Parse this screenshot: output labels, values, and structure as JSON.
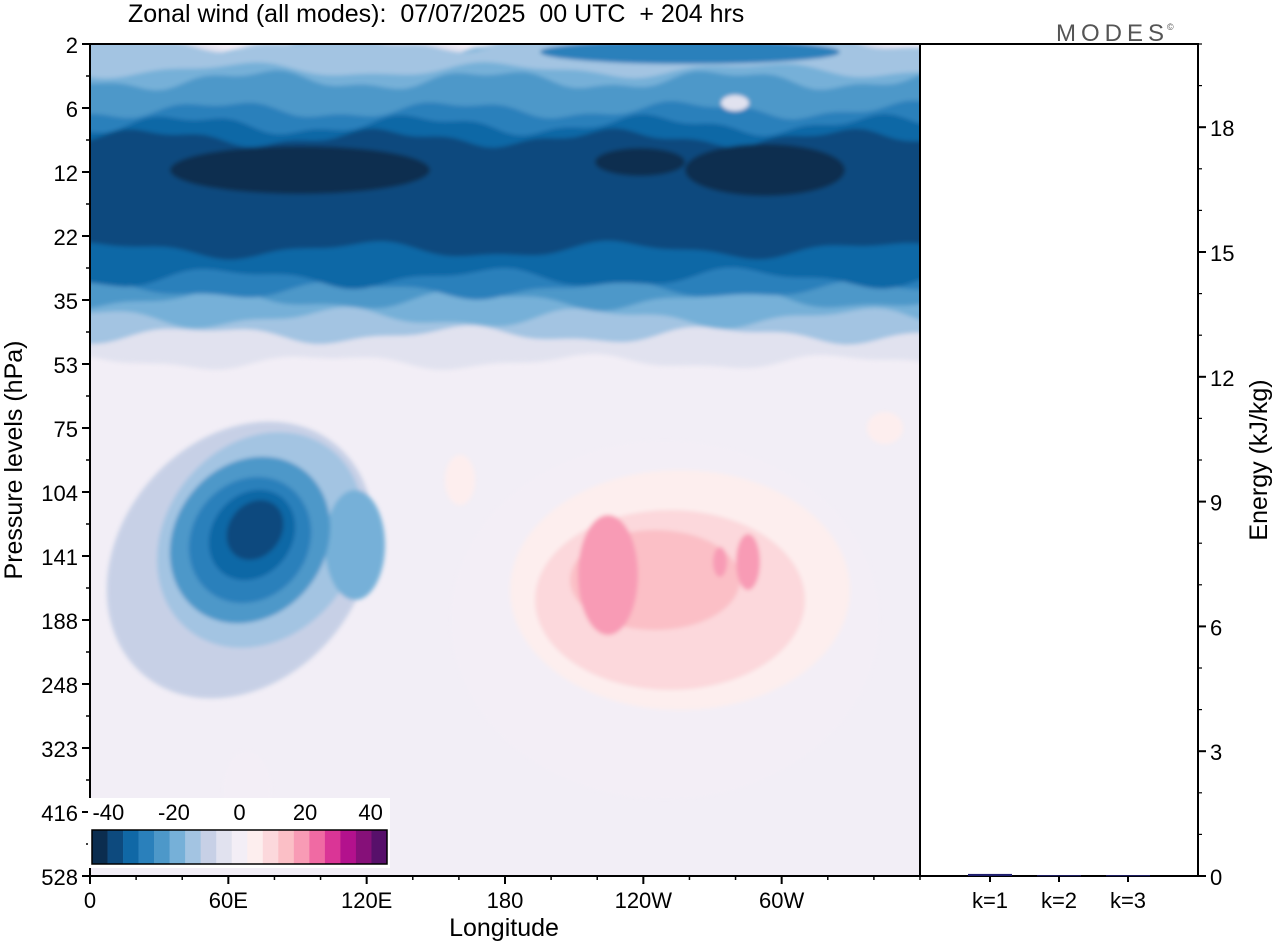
{
  "header": {
    "title": "Zonal wind (all modes):  07/07/2025  00 UTC  + 204 hrs",
    "logo": "MODES",
    "logo_mark": "©"
  },
  "chart_data": [
    {
      "type": "heatmap",
      "title": "Zonal wind (all modes):  07/07/2025  00 UTC  + 204 hrs",
      "xlabel": "Longitude",
      "ylabel": "Pressure levels (hPa)",
      "x_ticks": [
        "0",
        "60E",
        "120E",
        "180",
        "120W",
        "60W"
      ],
      "x_range_deg": [
        0,
        360
      ],
      "y_ticks": [
        "2",
        "6",
        "12",
        "22",
        "35",
        "53",
        "75",
        "104",
        "141",
        "188",
        "248",
        "323",
        "416",
        "528"
      ],
      "y_scale": "model levels, top to bottom",
      "colorbar": {
        "tick_labels": [
          "-40",
          "-20",
          "0",
          "20",
          "40"
        ],
        "range": [
          -45,
          45
        ],
        "step": 5,
        "colors": [
          "#0b2d4f",
          "#0d4a7e",
          "#1068a6",
          "#2a80bb",
          "#4d98c9",
          "#76b0d8",
          "#a3c4e2",
          "#c7d0e6",
          "#e1e2ef",
          "#f3eef6",
          "#fdeeee",
          "#fcd8dc",
          "#fbbfc6",
          "#f89bb5",
          "#f06aa3",
          "#da3596",
          "#b3118d",
          "#861079",
          "#57106a"
        ]
      },
      "field_features": [
        {
          "feature": "easterly jet",
          "lon_range": [
            0,
            360
          ],
          "levels": "6-35",
          "value": -38
        },
        {
          "feature": "easterly core",
          "lon_range": [
            30,
            130
          ],
          "levels": "10-16",
          "value": -42
        },
        {
          "feature": "easterly core",
          "lon_range": [
            190,
            340
          ],
          "levels": "10-22",
          "value": -42
        },
        {
          "feature": "easterly maximum",
          "lon_range": [
            35,
            95
          ],
          "levels": "104-188",
          "value": -38
        },
        {
          "feature": "westerly maximum",
          "lon_range": [
            175,
            320
          ],
          "levels": "104-248",
          "value": 22
        }
      ]
    },
    {
      "type": "bar",
      "ylabel": "Energy (kJ/kg)",
      "categories": [
        "k=1",
        "k=2",
        "k=3"
      ],
      "values": [
        0.05,
        0.02,
        0.02
      ],
      "ylim": [
        0,
        20
      ],
      "y_ticks": [
        "0",
        "3",
        "6",
        "9",
        "12",
        "15",
        "18"
      ],
      "bar_color": "#1f1f6e"
    }
  ]
}
